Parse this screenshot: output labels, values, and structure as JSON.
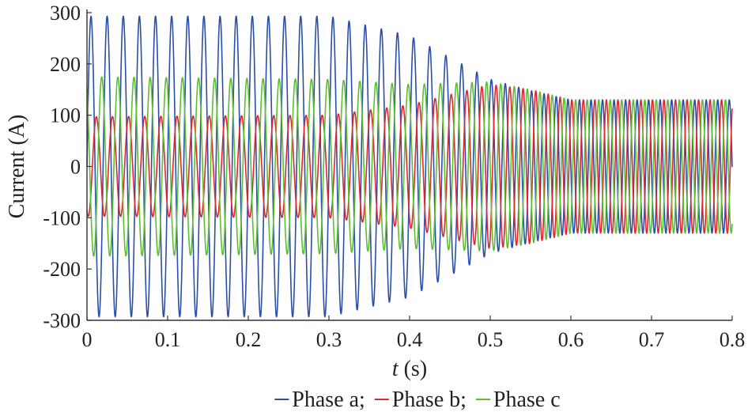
{
  "chart_data": {
    "type": "line",
    "title": "",
    "xlabel_italic": "t",
    "xlabel_unit": "(s)",
    "ylabel": "Current (A)",
    "xlim": [
      0,
      0.8
    ],
    "ylim": [
      -300,
      300
    ],
    "xticks": [
      0,
      0.1,
      0.2,
      0.3,
      0.4,
      0.5,
      0.6,
      0.7,
      0.8
    ],
    "xtick_labels": [
      "0",
      "0.1",
      "0.2",
      "0.3",
      "0.4",
      "0.5",
      "0.6",
      "0.7",
      "0.8"
    ],
    "yticks": [
      300,
      200,
      100,
      0,
      -100,
      -200,
      -300
    ],
    "ytick_labels": [
      "300",
      "200",
      "100",
      "0",
      "-100",
      "-200",
      "-300"
    ],
    "grid": false,
    "legend_position": "bottom",
    "series": [
      {
        "name": "Phase a",
        "color": "#2a4fa8",
        "waveform": "sinusoid",
        "phase_deg": 0,
        "frequency_hz": [
          [
            0,
            50
          ],
          [
            0.45,
            50
          ],
          [
            0.6,
            70
          ],
          [
            0.8,
            70
          ]
        ],
        "amplitude_envelope": [
          [
            0,
            293
          ],
          [
            0.3,
            293
          ],
          [
            0.4,
            255
          ],
          [
            0.5,
            170
          ],
          [
            0.55,
            148
          ],
          [
            0.6,
            130
          ],
          [
            0.8,
            130
          ]
        ]
      },
      {
        "name": "Phase b",
        "color": "#e0262f",
        "waveform": "sinusoid",
        "phase_deg": -120,
        "frequency_hz": [
          [
            0,
            50
          ],
          [
            0.45,
            50
          ],
          [
            0.6,
            70
          ],
          [
            0.8,
            70
          ]
        ],
        "amplitude_envelope": [
          [
            0,
            97
          ],
          [
            0.3,
            100
          ],
          [
            0.4,
            120
          ],
          [
            0.5,
            160
          ],
          [
            0.55,
            150
          ],
          [
            0.6,
            130
          ],
          [
            0.8,
            130
          ]
        ]
      },
      {
        "name": "Phase c",
        "color": "#5cbf2f",
        "waveform": "sinusoid",
        "phase_deg": 120,
        "frequency_hz": [
          [
            0,
            50
          ],
          [
            0.45,
            50
          ],
          [
            0.6,
            70
          ],
          [
            0.8,
            70
          ]
        ],
        "amplitude_envelope": [
          [
            0,
            175
          ],
          [
            0.3,
            170
          ],
          [
            0.4,
            160
          ],
          [
            0.5,
            165
          ],
          [
            0.55,
            150
          ],
          [
            0.6,
            130
          ],
          [
            0.8,
            130
          ]
        ]
      }
    ],
    "legend_separator": ";"
  }
}
